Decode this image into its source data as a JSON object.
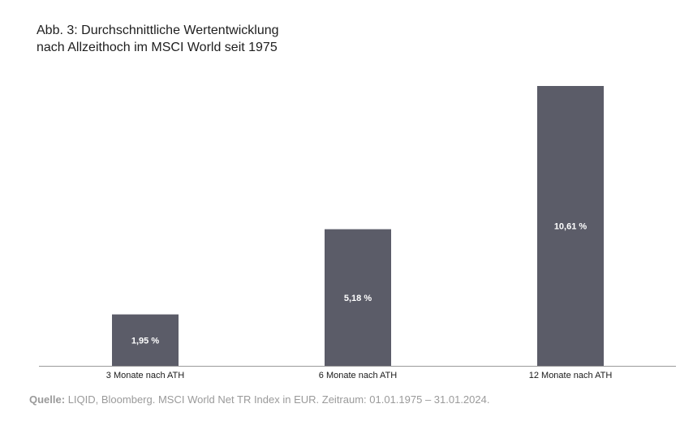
{
  "title": {
    "line1": "Abb. 3:  Durchschnittliche Wertentwicklung",
    "line2": "nach Allzeithoch im MSCI World seit 1975"
  },
  "chart_data": {
    "type": "bar",
    "categories": [
      "3 Monate nach ATH",
      "6 Monate nach ATH",
      "12 Monate nach ATH"
    ],
    "values": [
      1.95,
      5.18,
      10.61
    ],
    "data_labels": [
      "1,95 %",
      "5,18 %",
      "10,61 %"
    ],
    "unit": "%",
    "ylim": [
      0,
      10.61
    ],
    "grid": false,
    "legend": "none",
    "bar_color": "#5b5c68",
    "label_color": "#ffffff",
    "axis_color": "#9a9a9a"
  },
  "source": {
    "label": "Quelle:",
    "text": " LIQID, Bloomberg. MSCI World Net TR Index in EUR. Zeitraum: 01.01.1975 – 31.01.2024."
  }
}
